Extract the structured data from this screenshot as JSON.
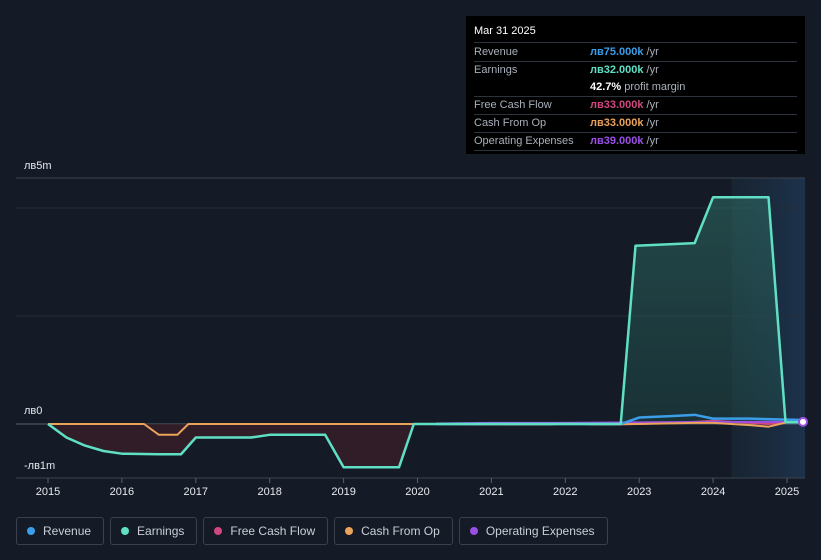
{
  "tooltip": {
    "date": "Mar 31 2025",
    "rows": [
      {
        "label": "Revenue",
        "value": "лв75.000k",
        "unit": "/yr",
        "color": "#3b9ee8"
      },
      {
        "label": "Earnings",
        "value": "лв32.000k",
        "unit": "/yr",
        "color": "#5fe0c5"
      },
      {
        "label": "Free Cash Flow",
        "value": "лв33.000k",
        "unit": "/yr",
        "color": "#d0487f"
      },
      {
        "label": "Cash From Op",
        "value": "лв33.000k",
        "unit": "/yr",
        "color": "#e9a35a"
      },
      {
        "label": "Operating Expenses",
        "value": "лв39.000k",
        "unit": "/yr",
        "color": "#9b4fe6"
      }
    ],
    "margin": {
      "value": "42.7%",
      "label": "profit margin"
    }
  },
  "legend": [
    {
      "label": "Revenue",
      "color": "#3b9ee8"
    },
    {
      "label": "Earnings",
      "color": "#5fe0c5"
    },
    {
      "label": "Free Cash Flow",
      "color": "#d0487f"
    },
    {
      "label": "Cash From Op",
      "color": "#e9a35a"
    },
    {
      "label": "Operating Expenses",
      "color": "#9b4fe6"
    }
  ],
  "chart_data": {
    "type": "area",
    "y_tick_labels": [
      "лв5m",
      "лв0",
      "-лв1m"
    ],
    "x_tick_labels": [
      "2015",
      "2016",
      "2017",
      "2018",
      "2019",
      "2020",
      "2021",
      "2022",
      "2023",
      "2024",
      "2025"
    ],
    "ylim": [
      -1,
      5
    ],
    "xlim": [
      2014.6,
      2025.25
    ],
    "forecast_shade_start": 2024.25,
    "grid": true,
    "series": [
      {
        "name": "Revenue",
        "color": "#3b9ee8",
        "x": [
          2020.25,
          2022.75,
          2023.0,
          2023.5,
          2023.75,
          2024.0,
          2024.5,
          2025.0,
          2025.25
        ],
        "y": [
          0.0,
          0.0,
          0.12,
          0.15,
          0.17,
          0.1,
          0.1,
          0.08,
          0.075
        ]
      },
      {
        "name": "Earnings",
        "color": "#5fe0c5",
        "x": [
          2015.0,
          2015.25,
          2015.5,
          2015.75,
          2016.0,
          2016.5,
          2016.8,
          2017.0,
          2017.75,
          2018.0,
          2018.75,
          2019.0,
          2019.75,
          2019.95,
          2020.25,
          2022.75,
          2022.95,
          2023.75,
          2024.0,
          2024.75,
          2024.98,
          2025.25
        ],
        "y": [
          0.0,
          -0.25,
          -0.4,
          -0.5,
          -0.55,
          -0.56,
          -0.56,
          -0.25,
          -0.25,
          -0.2,
          -0.2,
          -0.8,
          -0.8,
          0.0,
          0.0,
          0.0,
          3.3,
          3.35,
          4.2,
          4.2,
          0.032,
          0.032
        ]
      },
      {
        "name": "Free Cash Flow",
        "color": "#d0487f",
        "x": [
          2020.25,
          2021.75,
          2022.0,
          2022.5,
          2023.0,
          2023.75,
          2024.0,
          2024.75,
          2025.0,
          2025.25
        ],
        "y": [
          0.0,
          -0.01,
          0.01,
          -0.01,
          0.0,
          0.04,
          0.06,
          0.0,
          0.033,
          0.033
        ]
      },
      {
        "name": "Cash From Op",
        "color": "#e9a35a",
        "x": [
          2015.0,
          2016.0,
          2016.3,
          2016.5,
          2016.75,
          2016.9,
          2017.0,
          2020.0,
          2021.75,
          2022.0,
          2022.5,
          2023.0,
          2023.75,
          2024.0,
          2024.5,
          2024.75,
          2025.0,
          2025.25
        ],
        "y": [
          0.0,
          0.0,
          0.0,
          -0.2,
          -0.2,
          0.0,
          0.0,
          0.0,
          -0.01,
          0.01,
          -0.01,
          0.0,
          0.02,
          0.02,
          -0.02,
          -0.05,
          0.033,
          0.033
        ]
      },
      {
        "name": "Operating Expenses",
        "color": "#9b4fe6",
        "x": [
          2020.25,
          2021.0,
          2022.0,
          2023.0,
          2024.0,
          2025.0,
          2025.25
        ],
        "y": [
          0.01,
          0.02,
          0.02,
          0.03,
          0.04,
          0.039,
          0.039
        ]
      }
    ]
  }
}
